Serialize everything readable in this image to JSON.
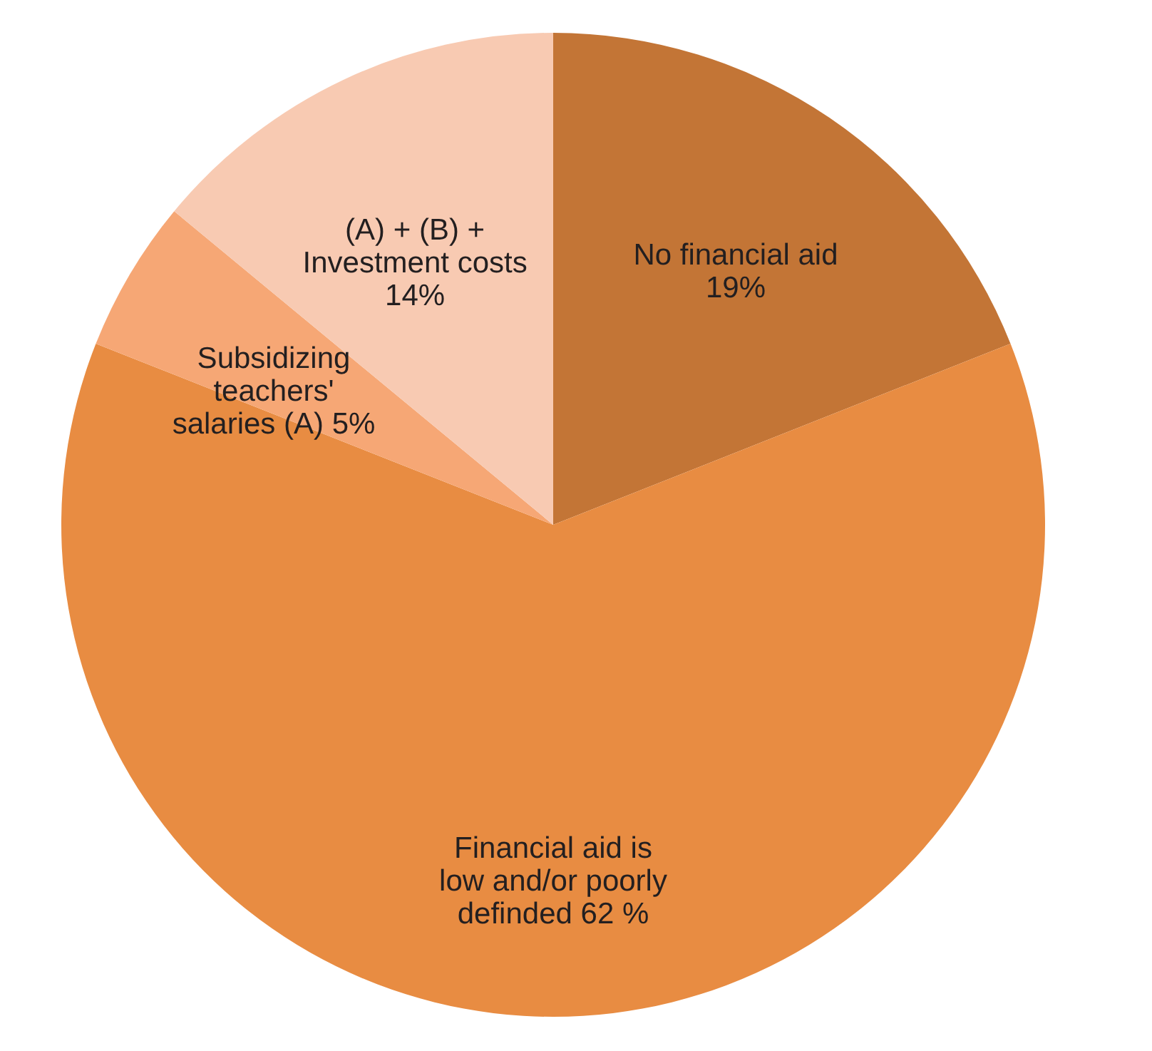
{
  "chart_data": {
    "type": "pie",
    "categories": [
      "No financial aid",
      "Financial aid is low and/or poorly definded",
      "Subsidizing teachers' salaries (A)",
      "(A) + (B) + Investment costs"
    ],
    "values": [
      19,
      62,
      5,
      14
    ],
    "value_labels": [
      "19%",
      "62 %",
      "5%",
      "14%"
    ],
    "colors": [
      "#c37536",
      "#e88c42",
      "#f6a775",
      "#f8cab2"
    ]
  }
}
